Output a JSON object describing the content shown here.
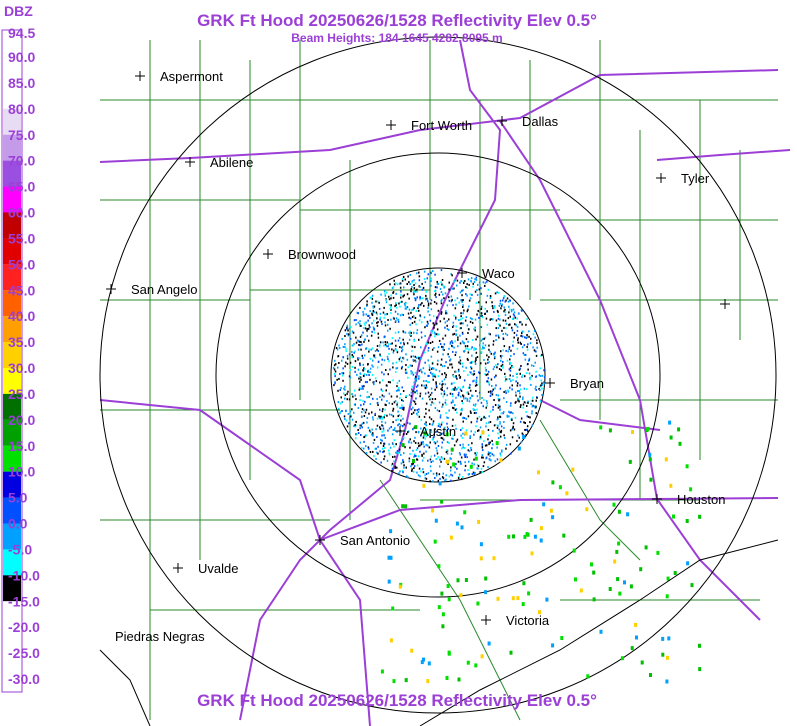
{
  "header": {
    "title": "GRK Ft Hood 20250626/1528 Reflectivity Elev 0.5°",
    "subtitle": "Beam Heights: 184 1645 4282 8095 m",
    "footer": "GRK Ft Hood 20250626/1528 Reflectivity Elev 0.5°"
  },
  "legend": {
    "title": "DBZ",
    "labels": [
      "94.5",
      "90.0",
      "85.0",
      "80.0",
      "75.0",
      "70.0",
      "65.0",
      "60.0",
      "55.0",
      "50.0",
      "45.0",
      "40.0",
      "35.0",
      "30.0",
      "25.0",
      "20.0",
      "15.0",
      "10.0",
      "5.0",
      "0.0",
      "-5.0",
      "-10.0",
      "-15.0",
      "-20.0",
      "-25.0",
      "-30.0"
    ]
  },
  "cities": [
    "Aspermont",
    "Fort Worth",
    "Dallas",
    "Abilene",
    "Tyler",
    "Brownwood",
    "Waco",
    "San Angelo",
    "Bryan",
    "Austin",
    "Houston",
    "San Antonio",
    "Uvalde",
    "Victoria",
    "Piedras Negras"
  ]
}
